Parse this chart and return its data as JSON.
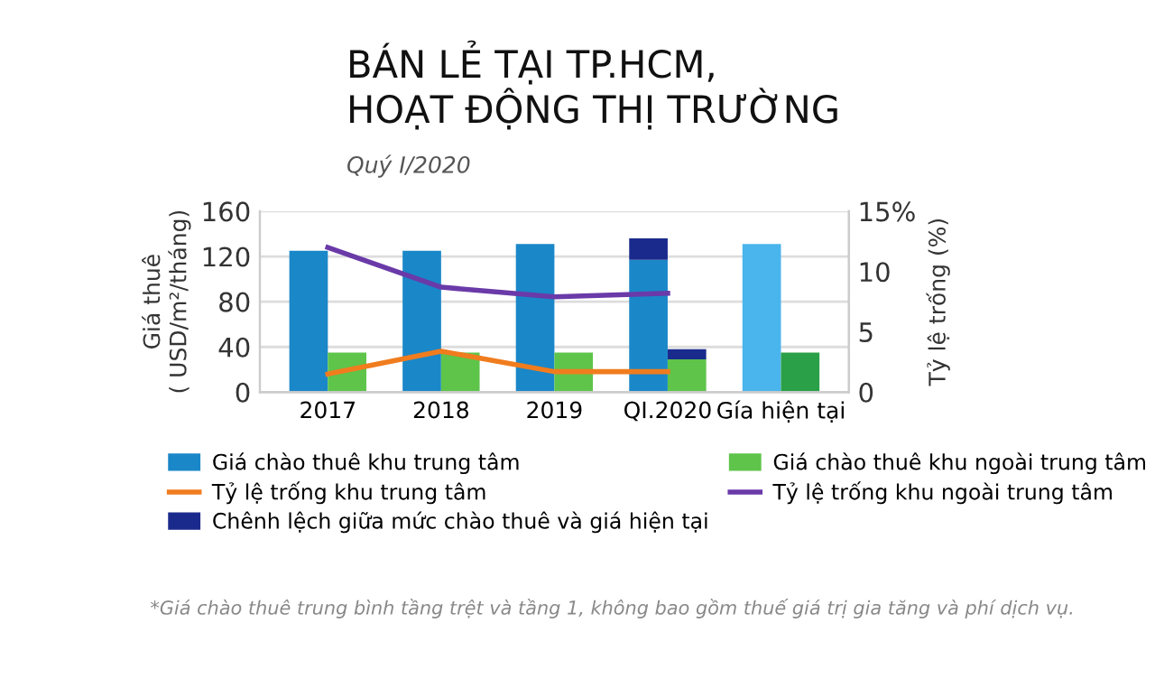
{
  "chart_data": {
    "type": "bar",
    "title": "BÁN LẺ TẠI TP.HCM,\nHOẠT ĐỘNG THỊ TRƯỜNG",
    "subtitle": "Quý I/2020",
    "ylabel": "Giá thuê\n( USD/m²/tháng)",
    "y2label": "Tỷ lệ trống (%)",
    "categories": [
      "2017",
      "2018",
      "2019",
      "QI.2020",
      "Gía hiện tại"
    ],
    "series": [
      {
        "name": "Giá chào thuê khu trung tâm",
        "color": "#1a87c8",
        "colors": [
          "#1a87c8",
          "#1a87c8",
          "#1a87c8",
          "#1a87c8",
          "#4ab4ec"
        ],
        "values": [
          125,
          125,
          131,
          117,
          131
        ]
      },
      {
        "name": "Chênh lệch giữa mức chào thuê và giá hiện tại",
        "color": "#1a2a8c",
        "base": [
          null,
          null,
          null,
          117,
          null
        ],
        "values": [
          null,
          null,
          null,
          19,
          null
        ]
      },
      {
        "name": "Giá chào thuê khu ngoài trung tâm",
        "color": "#5ec44a",
        "colors": [
          "#5ec44a",
          "#5ec44a",
          "#5ec44a",
          "#5ec44a",
          "#2aa048"
        ],
        "values": [
          35,
          35,
          35,
          29,
          35
        ]
      },
      {
        "color": "#1a2a8c",
        "base": [
          null,
          null,
          null,
          29,
          null
        ],
        "values": [
          null,
          null,
          null,
          9,
          null
        ]
      },
      {
        "name": "Tỷ lệ trống khu trung tâm",
        "type": "line",
        "axis": "y2",
        "color": "#f07c1e",
        "values": [
          1.5,
          3.4,
          1.7,
          1.7,
          null
        ]
      },
      {
        "name": "Tỷ lệ trống khu ngoài trung tâm",
        "type": "line",
        "axis": "y2",
        "color": "#6a3aa8",
        "values": [
          12.0,
          8.7,
          7.9,
          8.2,
          null
        ]
      }
    ],
    "ylim": [
      0,
      160
    ],
    "yticks": [
      0,
      40,
      80,
      120,
      160
    ],
    "y2lim": [
      0,
      15
    ],
    "y2ticks": [
      0,
      5,
      10,
      {
        "value": 15,
        "label": "15%"
      }
    ],
    "grid": "y",
    "legend": "bottom",
    "marker": "none",
    "line_style": "solid",
    "annotations": [
      "*Giá chào thuê trung bình tầng trệt và tầng 1, không bao gồm thuế giá trị gia tăng và phí dịch vụ."
    ]
  }
}
